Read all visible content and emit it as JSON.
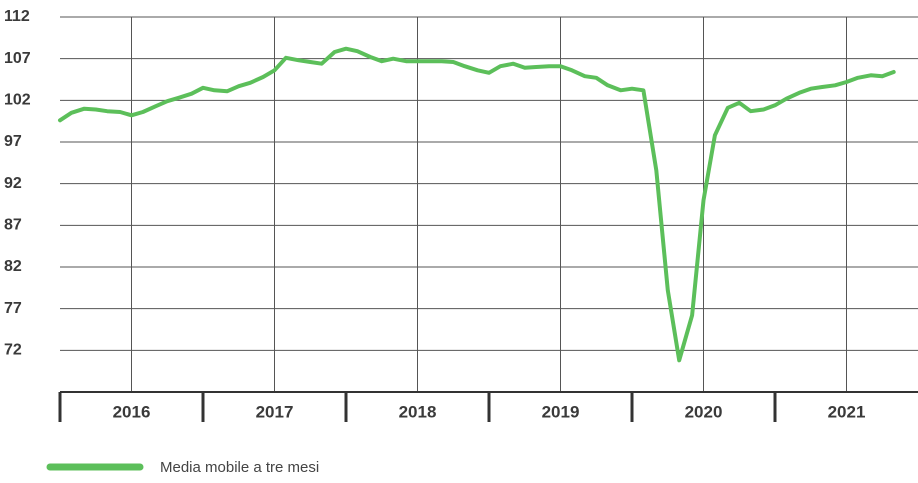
{
  "chart_data": {
    "type": "line",
    "x": [
      2016.0,
      2016.08,
      2016.17,
      2016.25,
      2016.33,
      2016.42,
      2016.5,
      2016.58,
      2016.67,
      2016.75,
      2016.83,
      2016.92,
      2017.0,
      2017.08,
      2017.17,
      2017.25,
      2017.33,
      2017.42,
      2017.5,
      2017.58,
      2017.67,
      2017.75,
      2017.83,
      2017.92,
      2018.0,
      2018.08,
      2018.17,
      2018.25,
      2018.33,
      2018.42,
      2018.5,
      2018.58,
      2018.67,
      2018.75,
      2018.83,
      2018.92,
      2019.0,
      2019.08,
      2019.17,
      2019.25,
      2019.33,
      2019.42,
      2019.5,
      2019.58,
      2019.67,
      2019.75,
      2019.83,
      2019.92,
      2020.0,
      2020.08,
      2020.17,
      2020.25,
      2020.33,
      2020.42,
      2020.5,
      2020.58,
      2020.67,
      2020.75,
      2020.83,
      2020.92,
      2021.0,
      2021.08,
      2021.17,
      2021.25,
      2021.33,
      2021.42,
      2021.5,
      2021.58,
      2021.67,
      2021.75,
      2021.83
    ],
    "series": [
      {
        "name": "Media mobile a tre mesi",
        "color": "#5cbf5a",
        "values": [
          99.6,
          100.5,
          101.0,
          100.9,
          100.7,
          100.6,
          100.2,
          100.6,
          101.3,
          101.9,
          102.3,
          102.8,
          103.5,
          103.2,
          103.1,
          103.7,
          104.1,
          104.8,
          105.6,
          107.1,
          106.8,
          106.6,
          106.4,
          107.8,
          108.2,
          107.9,
          107.2,
          106.7,
          107.0,
          106.7,
          106.7,
          106.7,
          106.7,
          106.6,
          106.1,
          105.6,
          105.3,
          106.1,
          106.4,
          105.9,
          106.0,
          106.1,
          106.1,
          105.6,
          104.9,
          104.7,
          103.8,
          103.2,
          103.4,
          103.2,
          93.6,
          79.2,
          70.8,
          76.2,
          90.0,
          97.8,
          101.1,
          101.7,
          100.7,
          100.9,
          101.4,
          102.2,
          102.9,
          103.4,
          103.6,
          103.8,
          104.2,
          104.7,
          105.0,
          104.9,
          105.4
        ]
      }
    ],
    "xlim": [
      2016,
      2022
    ],
    "xticks": [
      {
        "value": 2016.5,
        "label": "2016"
      },
      {
        "value": 2017.5,
        "label": "2017"
      },
      {
        "value": 2018.5,
        "label": "2018"
      },
      {
        "value": 2019.5,
        "label": "2019"
      },
      {
        "value": 2020.5,
        "label": "2020"
      },
      {
        "value": 2021.5,
        "label": "2021"
      }
    ],
    "ylim": [
      67,
      112
    ],
    "yticks": [
      72,
      77,
      82,
      87,
      92,
      97,
      102,
      107,
      112
    ],
    "grid": true
  }
}
